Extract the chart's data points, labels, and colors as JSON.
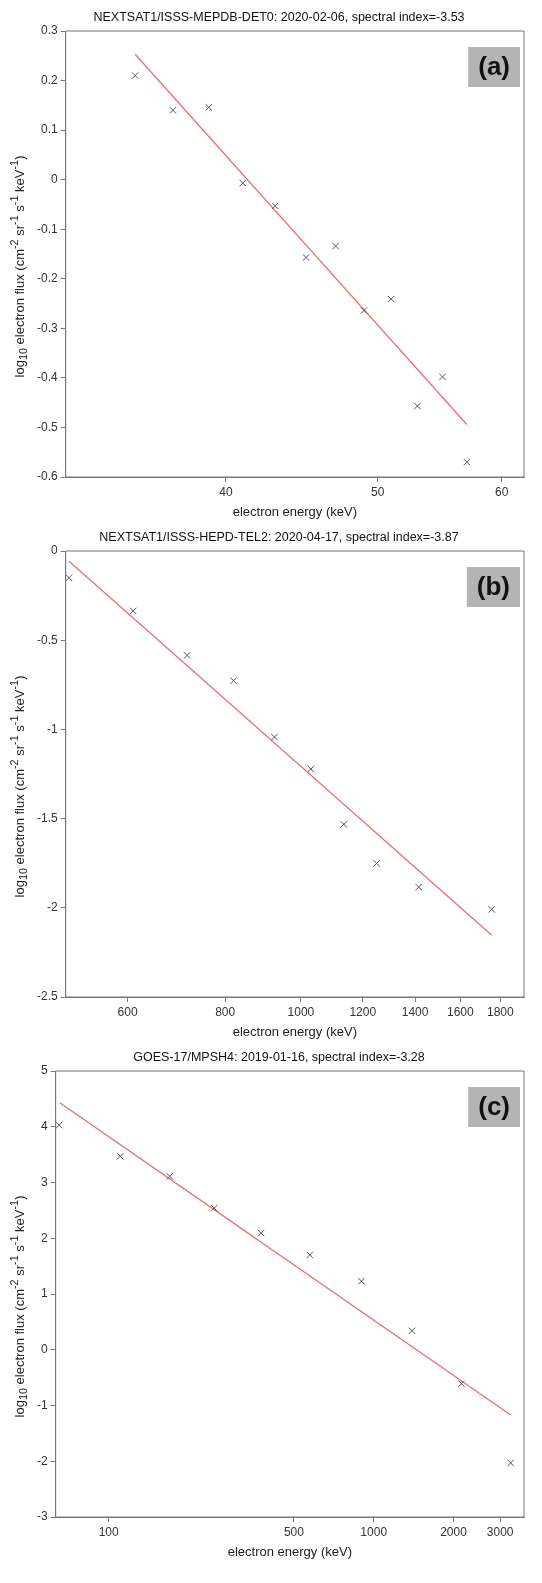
{
  "chart_data": [
    {
      "type": "scatter",
      "title": "NEXTSAT1/ISSS-MEPDB-DET0: 2020-02-06, spectral index=-3.53",
      "xlabel": "electron energy (keV)",
      "ylabel": "log$_{10}$ electron flux (cm$^{-2}$ sr$^{-1}$ s$^{-1}$ keV$^{-1}$)",
      "log": "x",
      "xlim": [
        31.6,
        62
      ],
      "xticks": [
        40,
        50,
        60
      ],
      "ylim": [
        -0.6,
        0.3
      ],
      "yticks": [
        -0.6,
        -0.5,
        -0.4,
        -0.3,
        -0.2,
        -0.1,
        0,
        0.1,
        0.2,
        0.3
      ],
      "grid": false,
      "legend": false,
      "annotations": [
        "(a)"
      ],
      "series": [
        {
          "type": "scatter",
          "marker": "cross",
          "color": "#555555",
          "x": [
            35,
            37,
            39,
            41,
            43,
            45,
            47,
            49,
            51,
            53,
            55,
            57
          ],
          "values": [
            0.21,
            0.14,
            0.146,
            -0.007,
            -0.053,
            -0.157,
            -0.134,
            -0.264,
            -0.241,
            -0.457,
            -0.398,
            -0.57
          ]
        },
        {
          "type": "line",
          "marker": "none",
          "color": "#e8706c",
          "x": [
            35,
            57
          ],
          "values": [
            0.253,
            -0.494
          ]
        }
      ]
    },
    {
      "type": "scatter",
      "title": "NEXTSAT1/ISSS-HEPD-TEL2: 2020-04-17, spectral index=-3.87",
      "xlabel": "electron energy (keV)",
      "ylabel": "log$_{10}$ electron flux (cm$^{-2}$ sr$^{-1}$ s$^{-1}$ keV$^{-1}$)",
      "log": "x",
      "xlim": [
        500,
        1930
      ],
      "xticks": [
        600,
        800,
        1000,
        1200,
        1400,
        1600,
        1800
      ],
      "ylim": [
        -2.5,
        0
      ],
      "yticks": [
        -2.5,
        -2,
        -1.5,
        -1,
        -0.5,
        0
      ],
      "grid": false,
      "legend": false,
      "annotations": [
        "(b)"
      ],
      "series": [
        {
          "type": "scatter",
          "marker": "cross",
          "color": "#555555",
          "x": [
            505,
            610,
            715,
            820,
            925,
            1030,
            1135,
            1250,
            1415,
            1755
          ],
          "values": [
            -0.15,
            -0.336,
            -0.585,
            -0.727,
            -1.043,
            -1.222,
            -1.532,
            -1.751,
            -1.884,
            -2.009
          ]
        },
        {
          "type": "line",
          "marker": "none",
          "color": "#e8706c",
          "x": [
            505,
            1755
          ],
          "values": [
            -0.057,
            -2.154
          ]
        }
      ]
    },
    {
      "type": "scatter",
      "title": "GOES-17/MPSH4: 2019-01-16, spectral index=-3.28",
      "xlabel": "electron energy (keV)",
      "ylabel": "log$_{10}$ electron flux (cm$^{-2}$ sr$^{-1}$ s$^{-1}$ keV$^{-1}$)",
      "log": "x",
      "xlim": [
        63.1,
        3690
      ],
      "xticks": [
        100,
        500,
        1000,
        2000,
        3000
      ],
      "ylim": [
        -3,
        5
      ],
      "yticks": [
        -3,
        -2,
        -1,
        0,
        1,
        2,
        3,
        4,
        5
      ],
      "grid": false,
      "legend": false,
      "annotations": [
        "(c)"
      ],
      "series": [
        {
          "type": "scatter",
          "marker": "cross",
          "color": "#555555",
          "x": [
            65,
            110.6,
            170,
            250,
            376,
            574,
            899,
            1394,
            2143,
            3286
          ],
          "values": [
            4.03,
            3.47,
            3.11,
            2.54,
            2.09,
            1.7,
            1.23,
            0.34,
            -0.61,
            -2.03
          ]
        },
        {
          "type": "line",
          "marker": "none",
          "color": "#e8706c",
          "x": [
            65.4,
            3286
          ],
          "values": [
            4.43,
            -1.17
          ]
        }
      ]
    }
  ]
}
